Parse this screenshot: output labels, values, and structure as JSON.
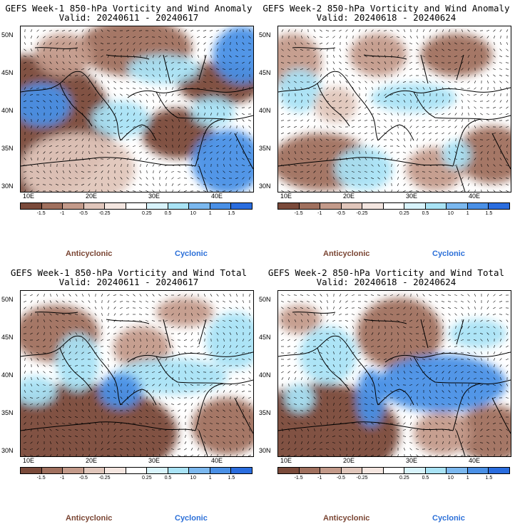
{
  "panels": [
    {
      "title": "GEFS Week-1 850-hPa Vorticity and Wind Anomaly",
      "valid": "Valid: 20240611 - 20240617"
    },
    {
      "title": "GEFS Week-2 850-hPa Vorticity and Wind Anomaly",
      "valid": "Valid: 20240618 - 20240624"
    },
    {
      "title": "GEFS Week-1 850-hPa Vorticity and Wind Total",
      "valid": "Valid: 20240611 - 20240617"
    },
    {
      "title": "GEFS Week-2 850-hPa Vorticity and Wind Total",
      "valid": "Valid: 20240618 - 20240624"
    }
  ],
  "lat_labels": [
    "50N",
    "45N",
    "40N",
    "35N",
    "30N"
  ],
  "lon_labels": [
    "10E",
    "20E",
    "30E",
    "40E"
  ],
  "colorbar": {
    "colors": [
      "#7a4a3a",
      "#a0705e",
      "#c39a8a",
      "#e0c6bb",
      "#f4e6e0",
      "#ffffff",
      "#d8f3fb",
      "#a9e3f5",
      "#7bb8ef",
      "#4a90e6",
      "#2a6ddf"
    ],
    "labels": [
      "-1.5",
      "-1",
      "-0.5",
      "-0.25",
      "0.25",
      "0.5",
      "1",
      "1.5"
    ],
    "scale_label": "10"
  },
  "legend": {
    "negative": "Anticyclonic",
    "positive": "Cyclonic",
    "negative_color": "#7a4533",
    "positive_color": "#2b6fd8"
  }
}
